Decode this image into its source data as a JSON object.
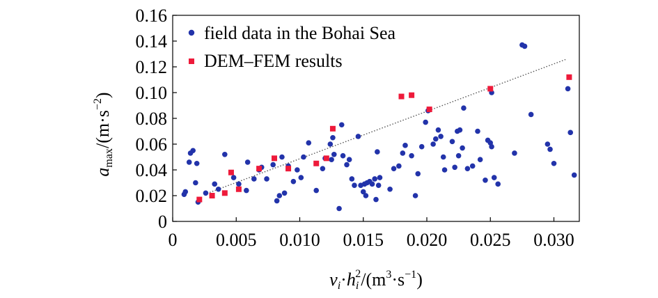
{
  "chart_data": {
    "type": "scatter",
    "xlim": [
      0,
      0.032
    ],
    "ylim": [
      0,
      0.16
    ],
    "x_ticks": [
      0,
      0.005,
      0.01,
      0.015,
      0.02,
      0.025,
      0.03
    ],
    "x_tick_labels": [
      "0",
      "0.005",
      "0.010",
      "0.015",
      "0.020",
      "0.025",
      "0.030"
    ],
    "y_ticks": [
      0,
      0.02,
      0.04,
      0.06,
      0.08,
      0.1,
      0.12,
      0.14,
      0.16
    ],
    "y_tick_labels": [
      "0",
      "0.02",
      "0.04",
      "0.06",
      "0.08",
      "0.10",
      "0.12",
      "0.14",
      "0.16"
    ],
    "xlabel": {
      "v": "v",
      "v_sub": "i",
      "dot": "·",
      "h": "h",
      "h_sub": "i",
      "h_sup": "2",
      "rest": "/(m",
      "m_sup": "3",
      "middle": "·s",
      "s_sup": "−1",
      "close": ")"
    },
    "ylabel": {
      "a": "a",
      "a_sub": "max",
      "rest": "/(m·s",
      "s_sup": "−2",
      "close": ")"
    },
    "legend": {
      "position": "top-left",
      "field_label": "field data in the Bohai Sea",
      "dem_label": "DEM–FEM results"
    },
    "colors": {
      "field": "#2233aa",
      "dem": "#ee1a3a",
      "trend": "#555555"
    },
    "trendline": {
      "x": [
        0.0025,
        0.031
      ],
      "y": [
        0.021,
        0.126
      ]
    },
    "series": [
      {
        "name": "field data in the Bohai Sea",
        "marker": "circle",
        "points": [
          [
            0.0009,
            0.021
          ],
          [
            0.001,
            0.023
          ],
          [
            0.0013,
            0.046
          ],
          [
            0.0014,
            0.053
          ],
          [
            0.0016,
            0.055
          ],
          [
            0.0018,
            0.03
          ],
          [
            0.0019,
            0.045
          ],
          [
            0.002,
            0.015
          ],
          [
            0.0026,
            0.022
          ],
          [
            0.0033,
            0.029
          ],
          [
            0.0036,
            0.025
          ],
          [
            0.0041,
            0.052
          ],
          [
            0.0048,
            0.034
          ],
          [
            0.0052,
            0.029
          ],
          [
            0.0058,
            0.024
          ],
          [
            0.0059,
            0.046
          ],
          [
            0.0064,
            0.033
          ],
          [
            0.0068,
            0.04
          ],
          [
            0.007,
            0.042
          ],
          [
            0.0074,
            0.033
          ],
          [
            0.0079,
            0.044
          ],
          [
            0.0082,
            0.016
          ],
          [
            0.0084,
            0.02
          ],
          [
            0.0086,
            0.05
          ],
          [
            0.0088,
            0.022
          ],
          [
            0.0091,
            0.043
          ],
          [
            0.0095,
            0.031
          ],
          [
            0.0098,
            0.04
          ],
          [
            0.0101,
            0.034
          ],
          [
            0.0103,
            0.05
          ],
          [
            0.0107,
            0.061
          ],
          [
            0.0113,
            0.024
          ],
          [
            0.0118,
            0.041
          ],
          [
            0.012,
            0.049
          ],
          [
            0.0124,
            0.06
          ],
          [
            0.0125,
            0.048
          ],
          [
            0.0126,
            0.065
          ],
          [
            0.0127,
            0.052
          ],
          [
            0.0131,
            0.01
          ],
          [
            0.0133,
            0.075
          ],
          [
            0.0134,
            0.051
          ],
          [
            0.0137,
            0.044
          ],
          [
            0.0139,
            0.048
          ],
          [
            0.0141,
            0.033
          ],
          [
            0.0143,
            0.028
          ],
          [
            0.0146,
            0.066
          ],
          [
            0.0148,
            0.028
          ],
          [
            0.015,
            0.023
          ],
          [
            0.0151,
            0.029
          ],
          [
            0.0152,
            0.02
          ],
          [
            0.0153,
            0.03
          ],
          [
            0.0155,
            0.031
          ],
          [
            0.0157,
            0.029
          ],
          [
            0.0159,
            0.033
          ],
          [
            0.016,
            0.017
          ],
          [
            0.0161,
            0.054
          ],
          [
            0.0162,
            0.028
          ],
          [
            0.0163,
            0.034
          ],
          [
            0.0171,
            0.025
          ],
          [
            0.0174,
            0.041
          ],
          [
            0.0178,
            0.043
          ],
          [
            0.0181,
            0.053
          ],
          [
            0.0183,
            0.059
          ],
          [
            0.0188,
            0.051
          ],
          [
            0.0191,
            0.02
          ],
          [
            0.0193,
            0.037
          ],
          [
            0.0196,
            0.058
          ],
          [
            0.0199,
            0.077
          ],
          [
            0.0201,
            0.086
          ],
          [
            0.0205,
            0.06
          ],
          [
            0.0207,
            0.064
          ],
          [
            0.0209,
            0.071
          ],
          [
            0.0211,
            0.066
          ],
          [
            0.0213,
            0.05
          ],
          [
            0.0214,
            0.04
          ],
          [
            0.022,
            0.062
          ],
          [
            0.0222,
            0.042
          ],
          [
            0.0224,
            0.07
          ],
          [
            0.0225,
            0.051
          ],
          [
            0.0226,
            0.071
          ],
          [
            0.0228,
            0.057
          ],
          [
            0.0229,
            0.088
          ],
          [
            0.0232,
            0.041
          ],
          [
            0.0236,
            0.043
          ],
          [
            0.024,
            0.07
          ],
          [
            0.0242,
            0.048
          ],
          [
            0.0246,
            0.032
          ],
          [
            0.0248,
            0.063
          ],
          [
            0.025,
            0.061
          ],
          [
            0.0251,
            0.058
          ],
          [
            0.0253,
            0.034
          ],
          [
            0.0256,
            0.029
          ],
          [
            0.0269,
            0.053
          ],
          [
            0.0275,
            0.137
          ],
          [
            0.0277,
            0.136
          ],
          [
            0.0282,
            0.083
          ],
          [
            0.0295,
            0.06
          ],
          [
            0.0297,
            0.056
          ],
          [
            0.03,
            0.045
          ],
          [
            0.0311,
            0.103
          ],
          [
            0.0313,
            0.069
          ],
          [
            0.0316,
            0.036
          ],
          [
            0.0251,
            0.1
          ]
        ]
      },
      {
        "name": "DEM–FEM results",
        "marker": "square",
        "points": [
          [
            0.0021,
            0.017
          ],
          [
            0.0031,
            0.02
          ],
          [
            0.0041,
            0.022
          ],
          [
            0.0046,
            0.038
          ],
          [
            0.0052,
            0.025
          ],
          [
            0.0068,
            0.041
          ],
          [
            0.008,
            0.049
          ],
          [
            0.0091,
            0.041
          ],
          [
            0.0113,
            0.045
          ],
          [
            0.0121,
            0.049
          ],
          [
            0.0126,
            0.072
          ],
          [
            0.018,
            0.097
          ],
          [
            0.0188,
            0.098
          ],
          [
            0.0202,
            0.087
          ],
          [
            0.025,
            0.103
          ],
          [
            0.0312,
            0.112
          ]
        ]
      }
    ]
  }
}
